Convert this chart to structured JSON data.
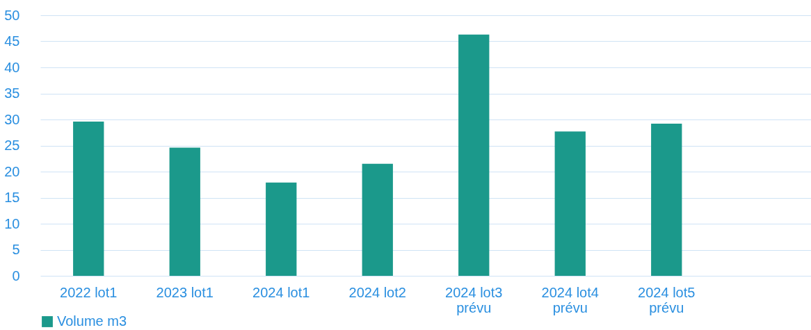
{
  "chart_data": {
    "type": "bar",
    "categories": [
      "2022 lot1",
      "2023 lot1",
      "2024 lot1",
      "2024 lot2",
      "2024 lot3\nprévu",
      "2024 lot4\nprévu",
      "2024 lot5\nprévu",
      null
    ],
    "series": [
      {
        "name": "Volume m3",
        "color": "#1b998b",
        "values": [
          29.6,
          24.6,
          17.9,
          21.5,
          46.3,
          27.7,
          29.2,
          null
        ]
      }
    ],
    "ylim": [
      0,
      50
    ],
    "yticks": [
      0,
      5,
      10,
      15,
      20,
      25,
      30,
      35,
      40,
      45,
      50
    ],
    "grid": "y",
    "legend": "bottom"
  }
}
